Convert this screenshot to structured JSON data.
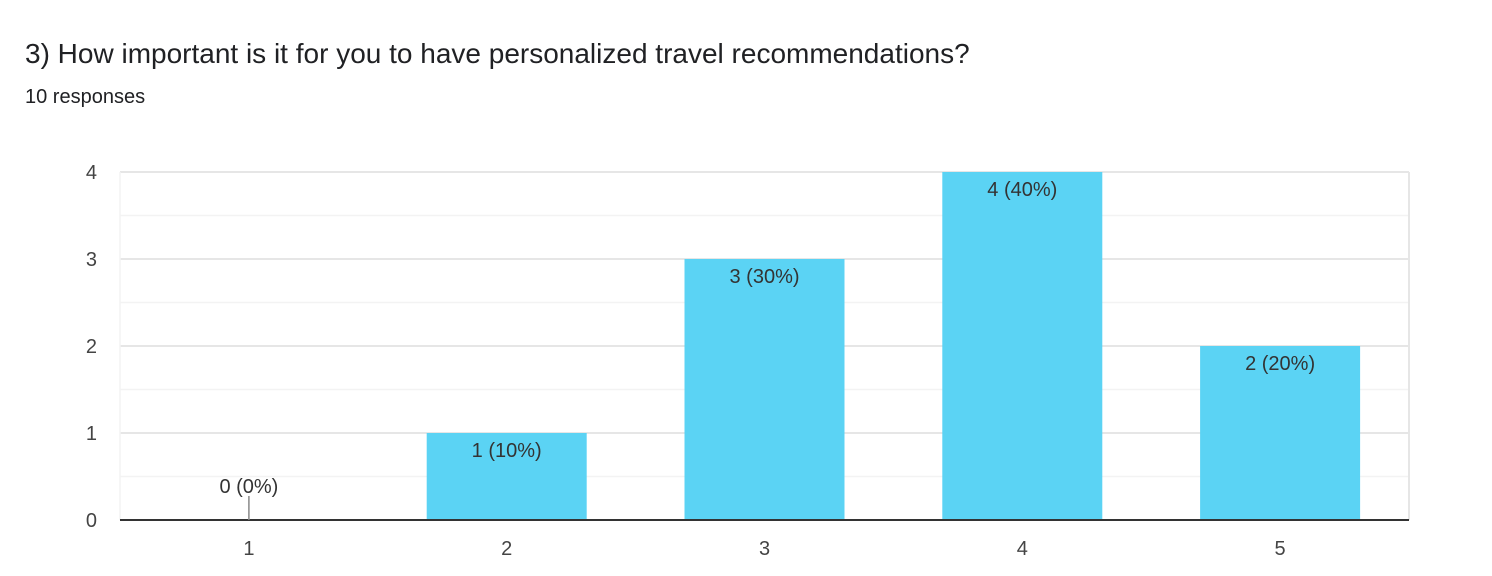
{
  "question": {
    "title": "3) How important is it for you to have personalized travel recommendations?",
    "responses": "10 responses"
  },
  "colors": {
    "bar": "#5bd3f4",
    "grid_major": "#e6e6e6",
    "grid_minor": "#f3f3f3",
    "axis": "#333333",
    "leader": "#888888"
  },
  "chart_data": {
    "type": "bar",
    "categories": [
      "1",
      "2",
      "3",
      "4",
      "5"
    ],
    "values": [
      0,
      1,
      3,
      4,
      2
    ],
    "data_labels": [
      "0 (0%)",
      "1 (10%)",
      "3 (30%)",
      "4 (40%)",
      "2 (20%)"
    ],
    "y_ticks": [
      "0",
      "1",
      "2",
      "3",
      "4"
    ],
    "ylim": [
      0,
      4
    ],
    "grid": true,
    "legend": "none",
    "title": "",
    "xlabel": "",
    "ylabel": ""
  }
}
